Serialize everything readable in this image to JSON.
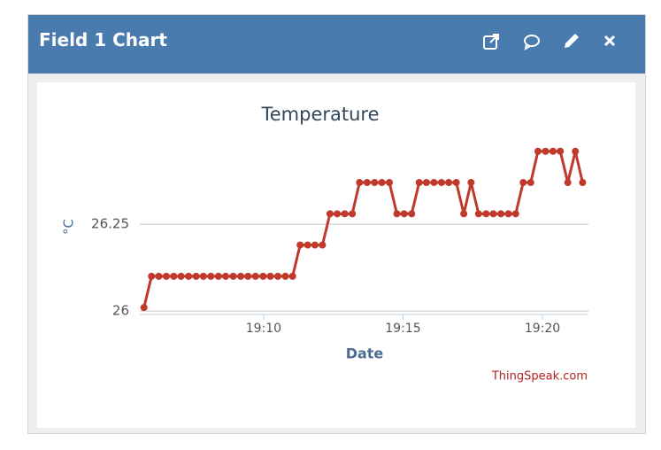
{
  "header": {
    "title": "Field 1 Chart"
  },
  "chart_data": {
    "type": "line",
    "title": "Temperature",
    "x_label": "Date",
    "y_label": "°C",
    "credit": "ThingSpeak.com",
    "x": [
      1145.71,
      1145.98,
      1146.24,
      1146.51,
      1146.78,
      1147.04,
      1147.31,
      1147.58,
      1147.84,
      1148.11,
      1148.38,
      1148.64,
      1148.91,
      1149.18,
      1149.44,
      1149.71,
      1149.98,
      1150.24,
      1150.51,
      1150.78,
      1151.04,
      1151.31,
      1151.58,
      1151.84,
      1152.11,
      1152.38,
      1152.64,
      1152.91,
      1153.18,
      1153.44,
      1153.71,
      1153.98,
      1154.24,
      1154.51,
      1154.78,
      1155.04,
      1155.31,
      1155.58,
      1155.84,
      1156.11,
      1156.38,
      1156.64,
      1156.91,
      1157.18,
      1157.44,
      1157.71,
      1157.98,
      1158.24,
      1158.51,
      1158.78,
      1159.04,
      1159.31,
      1159.58,
      1159.84,
      1160.11,
      1160.38,
      1160.64,
      1160.91,
      1161.18,
      1161.44
    ],
    "series": [
      {
        "name": "Temperature",
        "color": "#c0392b",
        "values": [
          26.01,
          26.1,
          26.1,
          26.1,
          26.1,
          26.1,
          26.1,
          26.1,
          26.1,
          26.1,
          26.1,
          26.1,
          26.1,
          26.1,
          26.1,
          26.1,
          26.1,
          26.1,
          26.1,
          26.1,
          26.1,
          26.19,
          26.19,
          26.19,
          26.19,
          26.28,
          26.28,
          26.28,
          26.28,
          26.37,
          26.37,
          26.37,
          26.37,
          26.37,
          26.28,
          26.28,
          26.28,
          26.37,
          26.37,
          26.37,
          26.37,
          26.37,
          26.37,
          26.28,
          26.37,
          26.28,
          26.28,
          26.28,
          26.28,
          26.28,
          26.28,
          26.37,
          26.37,
          26.46,
          26.46,
          26.46,
          26.46,
          26.37,
          26.46,
          26.37
        ]
      }
    ],
    "xlim": [
      1145.56,
      1161.65
    ],
    "xticks": [
      {
        "value": 1150,
        "label": "19:10"
      },
      {
        "value": 1155,
        "label": "19:15"
      },
      {
        "value": 1160,
        "label": "19:20"
      }
    ],
    "ylim": [
      25.99,
      26.49
    ],
    "yticks": [
      26,
      26.25
    ],
    "grid": true
  }
}
